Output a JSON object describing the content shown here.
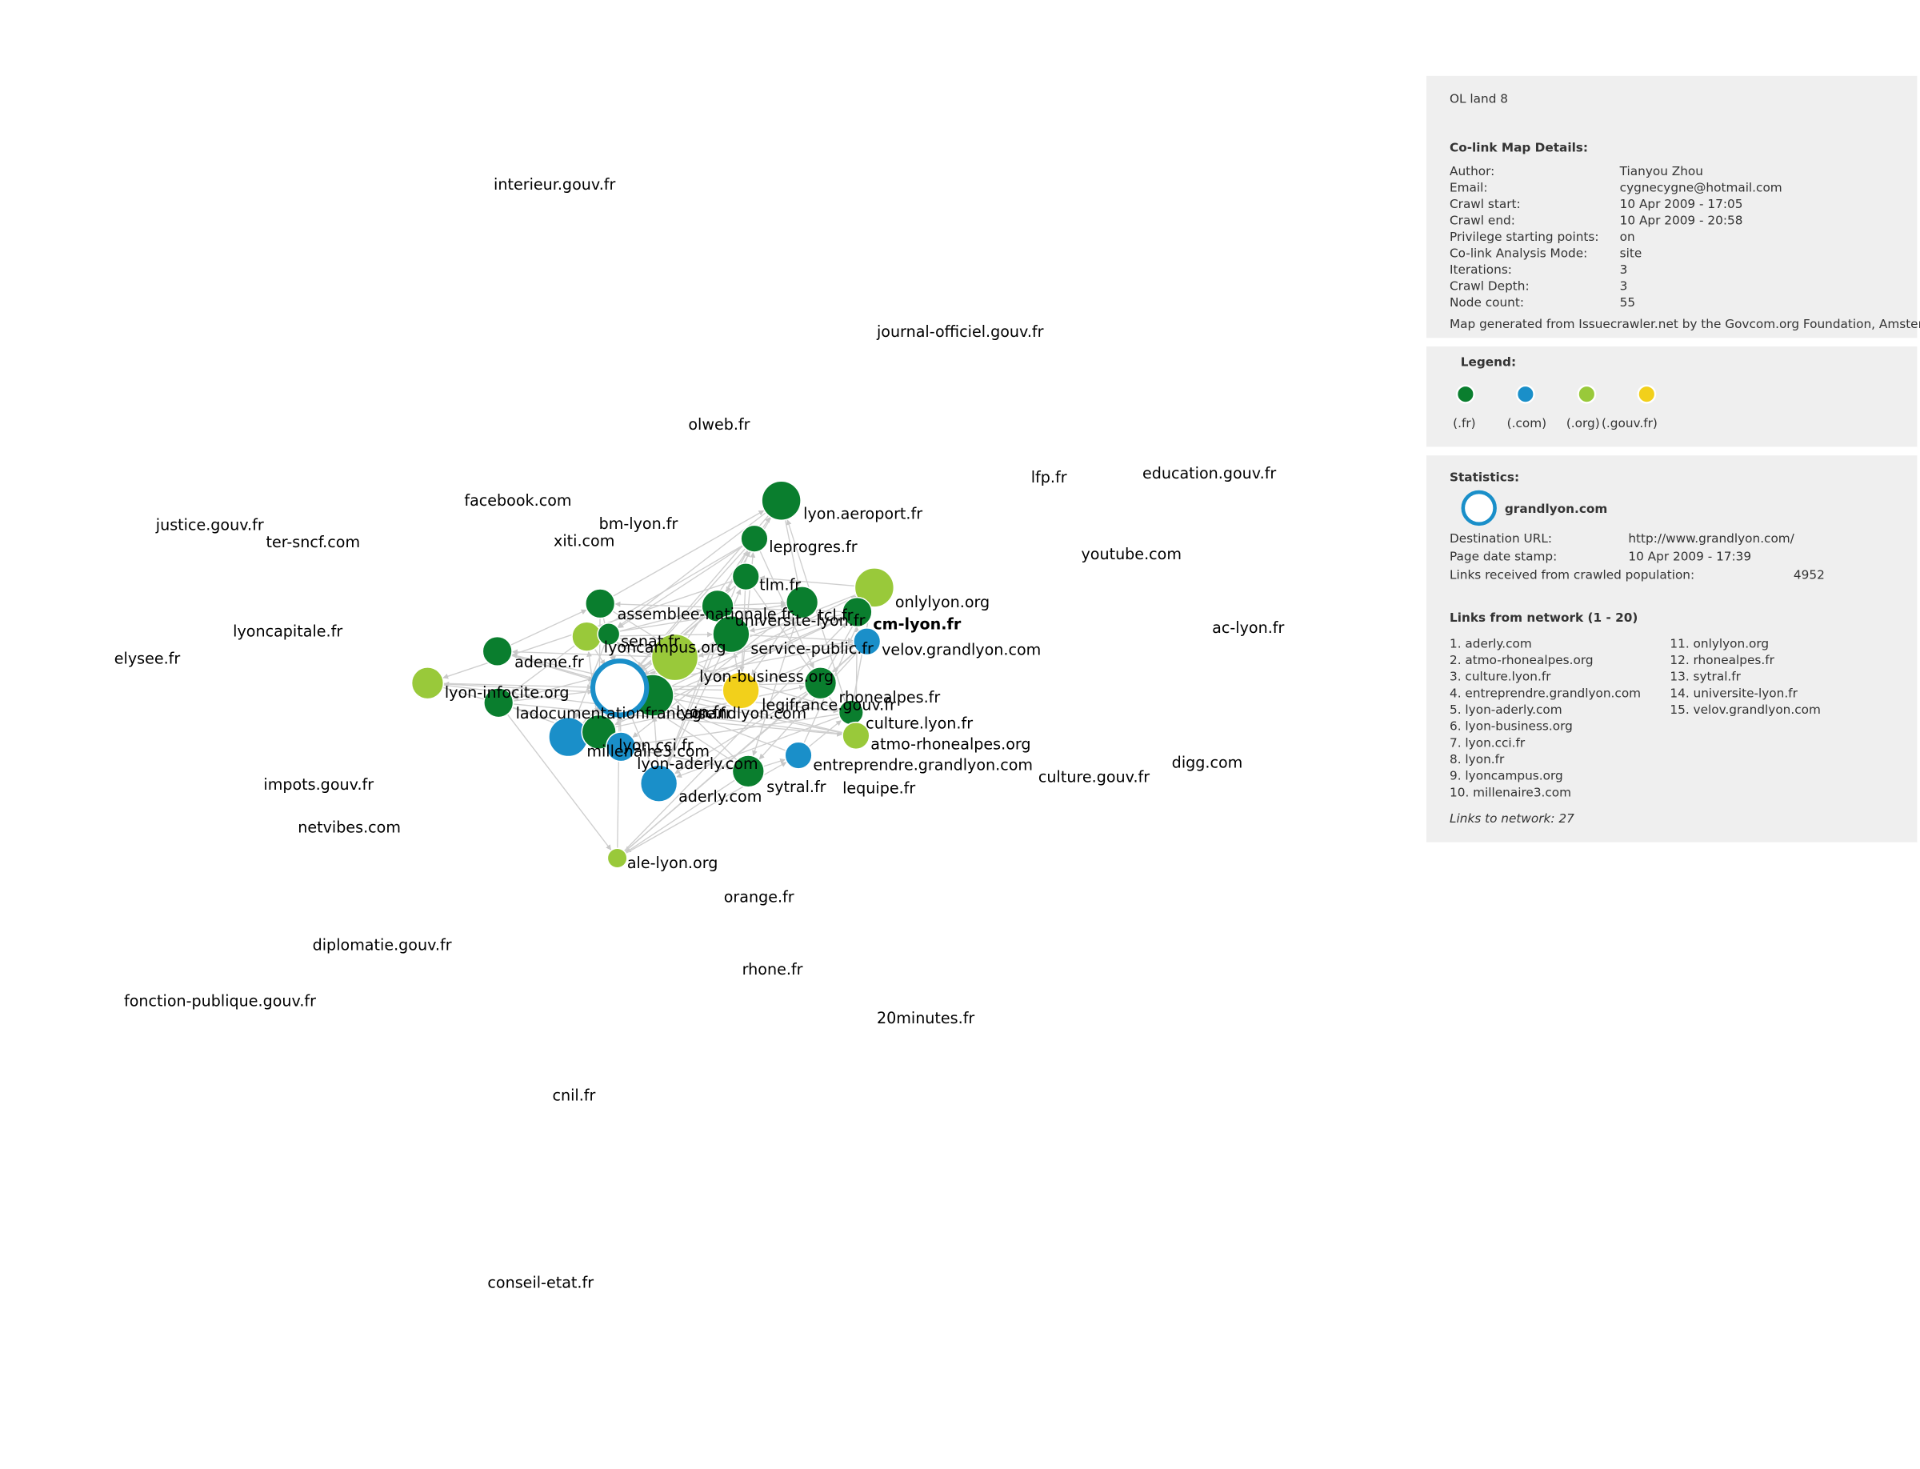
{
  "map": {
    "labels": [
      "interieur.gouv.fr",
      "journal-officiel.gouv.fr",
      "olweb.fr",
      "facebook.com",
      "lfp.fr",
      "education.gouv.fr",
      "justice.gouv.fr",
      "bm-lyon.fr",
      "lyon.aeroport.fr",
      "ter-sncf.com",
      "xiti.com",
      "leprogres.fr",
      "youtube.com",
      "tlm.fr",
      "onlylyon.org",
      "assemblee-nationale.fr",
      "tcl.fr",
      "universite-lyon.fr",
      "cm-lyon.fr",
      "ac-lyon.fr",
      "lyoncapitale.fr",
      "senat.fr",
      "lyoncampus.org",
      "service-public.fr",
      "velov.grandlyon.com",
      "elysee.fr",
      "ademe.fr",
      "lyon-business.org",
      "lyon-infocite.org",
      "rhonealpes.fr",
      "legifrance.gouv.fr",
      "ladocumentationfrancaise.fr",
      "lyon.fr",
      "grandlyon.com",
      "culture.lyon.fr",
      "atmo-rhonealpes.org",
      "lyon.cci.fr",
      "millenaire3.com",
      "lyon-aderly.com",
      "entreprendre.grandlyon.com",
      "culture.gouv.fr",
      "digg.com",
      "impots.gouv.fr",
      "sytral.fr",
      "lequipe.fr",
      "aderly.com",
      "netvibes.com",
      "ale-lyon.org",
      "orange.fr",
      "diplomatie.gouv.fr",
      "rhone.fr",
      "fonction-publique.gouv.fr",
      "20minutes.fr",
      "cnil.fr",
      "conseil-etat.fr"
    ]
  },
  "details": {
    "title": "OL land 8",
    "heading": "Co-link Map Details:",
    "rows": [
      {
        "key": "Author:",
        "value": "Tianyou Zhou"
      },
      {
        "key": "Email:",
        "value": "cygnecygne@hotmail.com"
      },
      {
        "key": "Crawl start:",
        "value": "10 Apr 2009 - 17:05"
      },
      {
        "key": "Crawl end:",
        "value": "10 Apr 2009 - 20:58"
      },
      {
        "key": "Privilege starting points:",
        "value": "on"
      },
      {
        "key": "Co-link Analysis Mode:",
        "value": "site"
      },
      {
        "key": "Iterations:",
        "value": "3"
      },
      {
        "key": "Crawl Depth:",
        "value": "3"
      },
      {
        "key": "Node count:",
        "value": "55"
      }
    ],
    "note": "Map generated from Issuecrawler.net by the Govcom.org Foundation, Amsterdam."
  },
  "legend": {
    "heading": "Legend:",
    "items": [
      {
        "label": "(.fr)",
        "color": "#0a7e2e"
      },
      {
        "label": "(.com)",
        "color": "#1a8fc9"
      },
      {
        "label": "(.org)",
        "color": "#99c93a"
      },
      {
        "label": "(.gouv.fr)",
        "color": "#f2d01b"
      }
    ]
  },
  "statistics": {
    "heading": "Statistics:",
    "site": "grandlyon.com",
    "rows": [
      {
        "key": "Destination URL:",
        "value": "http://www.grandlyon.com/"
      },
      {
        "key": "Page date stamp:",
        "value": "10 Apr 2009 - 17:39"
      },
      {
        "key": "Links received from crawled population:",
        "value": "4952"
      }
    ],
    "links_heading": "Links from network (1 - 20)",
    "links": [
      "1. aderly.com",
      "2. atmo-rhonealpes.org",
      "3. culture.lyon.fr",
      "4. entreprendre.grandlyon.com",
      "5. lyon-aderly.com",
      "6. lyon-business.org",
      "7. lyon.cci.fr",
      "8. lyon.fr",
      "9. lyoncampus.org",
      "10. millenaire3.com",
      "11. onlylyon.org",
      "12. rhonealpes.fr",
      "13. sytral.fr",
      "14. universite-lyon.fr",
      "15. velov.grandlyon.com"
    ],
    "links_to": "Links to network: 27"
  }
}
